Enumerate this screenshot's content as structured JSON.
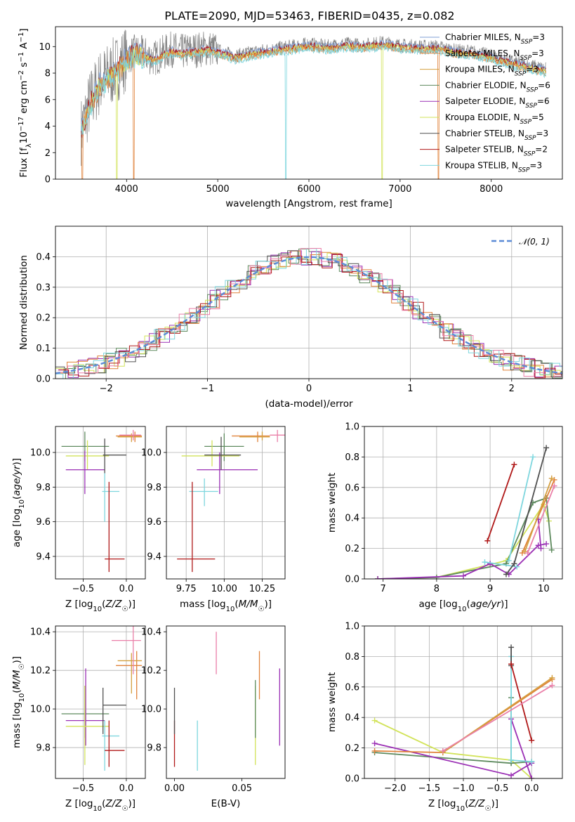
{
  "title": "PLATE=2090, MJD=53463, FIBERID=0435, z=0.082",
  "colors": {
    "Chabrier MILES": "#7f9fd6",
    "Salpeter MILES": "#e0823a",
    "Kroupa MILES": "#d4a040",
    "Chabrier ELODIE": "#5e8a5e",
    "Salpeter ELODIE": "#9b30b5",
    "Kroupa ELODIE": "#d2e35a",
    "Chabrier STELIB": "#505050",
    "Salpeter STELIB": "#b01818",
    "Kroupa STELIB": "#7ed6de",
    "extra_pink": "#ea7fa8",
    "normal_curve": "#5b8bd6",
    "grid": "#b0b0b0"
  },
  "chart_data": [
    {
      "id": "spectrum",
      "type": "line",
      "title": "PLATE=2090, MJD=53463, FIBERID=0435, z=0.082",
      "xlabel": "wavelength [Angstrom, rest frame]",
      "ylabel": "Flux [f_λ 10^-17 erg cm^-2 s^-1 A^-1]",
      "xlim": [
        3220,
        8780
      ],
      "ylim": [
        0,
        11.5
      ],
      "xticks": [
        4000,
        5000,
        6000,
        7000,
        8000
      ],
      "yticks": [
        0,
        2,
        4,
        6,
        8,
        10
      ],
      "grid": false,
      "legend_position": "top-right",
      "legend": [
        "Chabrier MILES, N_SSP=3",
        "Salpeter MILES, N_SSP=3",
        "Kroupa MILES, N_SSP=3",
        "Chabrier ELODIE, N_SSP=6",
        "Salpeter ELODIE, N_SSP=6",
        "Kroupa ELODIE, N_SSP=5",
        "Chabrier STELIB, N_SSP=3",
        "Salpeter STELIB, N_SSP=2",
        "Kroupa STELIB, N_SSP=3"
      ],
      "legend_labels": [
        {
          "name": "Chabrier MILES, N",
          "sub": "SSP",
          "tail": "=3"
        },
        {
          "name": "Salpeter MILES, N",
          "sub": "SSP",
          "tail": "=3"
        },
        {
          "name": "Kroupa MILES, N",
          "sub": "SSP",
          "tail": "=3"
        },
        {
          "name": "Chabrier ELODIE, N",
          "sub": "SSP",
          "tail": "=6"
        },
        {
          "name": "Salpeter ELODIE, N",
          "sub": "SSP",
          "tail": "=6"
        },
        {
          "name": "Kroupa ELODIE, N",
          "sub": "SSP",
          "tail": "=5"
        },
        {
          "name": "Chabrier STELIB, N",
          "sub": "SSP",
          "tail": "=3"
        },
        {
          "name": "Salpeter STELIB, N",
          "sub": "SSP",
          "tail": "=2"
        },
        {
          "name": "Kroupa STELIB, N",
          "sub": "SSP",
          "tail": "=3"
        }
      ],
      "data_envelope": {
        "x": [
          3500,
          3600,
          3700,
          3800,
          3900,
          4000,
          4100,
          4200,
          4300,
          4400,
          4500,
          4600,
          4700,
          4800,
          4900,
          5000,
          5100,
          5200,
          5400,
          5600,
          5800,
          6000,
          6200,
          6400,
          6600,
          6800,
          7000,
          7200,
          7400,
          7600,
          7800,
          8000,
          8200,
          8400,
          8600
        ],
        "y": [
          3.6,
          5.8,
          7.2,
          7.8,
          8.4,
          9.2,
          9.6,
          9.4,
          9.1,
          9.5,
          9.8,
          9.6,
          9.7,
          9.8,
          9.9,
          9.7,
          9.5,
          9.3,
          9.6,
          9.8,
          10.0,
          10.2,
          10.0,
          10.2,
          10.1,
          10.3,
          10.1,
          10.0,
          10.0,
          9.7,
          9.6,
          9.3,
          8.9,
          8.6,
          8.3
        ]
      },
      "dips": [
        {
          "series": "Salpeter MILES",
          "x": 3515
        },
        {
          "series": "Salpeter MILES",
          "x": 4080
        },
        {
          "series": "Kroupa ELODIE",
          "x": 3895
        },
        {
          "series": "Kroupa STELIB",
          "x": 5745
        },
        {
          "series": "Kroupa ELODIE",
          "x": 6805
        },
        {
          "series": "Salpeter MILES",
          "x": 7420
        }
      ]
    },
    {
      "id": "residual_histogram",
      "type": "bar",
      "xlabel": "(data-model)/error",
      "ylabel": "Normed distribution",
      "xlim": [
        -2.5,
        2.5
      ],
      "ylim": [
        0,
        0.5
      ],
      "xticks": [
        -2,
        -1,
        0,
        1,
        2
      ],
      "yticks": [
        0.0,
        0.1,
        0.2,
        0.3,
        0.4
      ],
      "grid": true,
      "legend_position": "top-right",
      "legend": [
        "N(0,1)"
      ],
      "bin_edges_from": -2.5,
      "bin_width": 0.1,
      "histograms": [
        {
          "series": "Chabrier ELODIE",
          "shift": 0.0
        },
        {
          "series": "Salpeter ELODIE",
          "shift": 0.025
        },
        {
          "series": "Kroupa ELODIE",
          "shift": -0.02
        },
        {
          "series": "Salpeter MILES",
          "shift": 0.015
        },
        {
          "series": "Chabrier STELIB",
          "shift": -0.01
        },
        {
          "series": "Salpeter STELIB",
          "shift": 0.03
        },
        {
          "series": "Kroupa STELIB",
          "shift": -0.025
        },
        {
          "series": "extra_pink",
          "shift": 0.02
        }
      ]
    },
    {
      "id": "age_vs_Z",
      "type": "scatter",
      "xlabel": "Z [log10(Z/Z☉)]",
      "ylabel": "age [log10(age/yr)]",
      "xlim": [
        -0.82,
        0.22
      ],
      "ylim": [
        9.27,
        10.15
      ],
      "xticks": [
        -0.5,
        0.0
      ],
      "yticks": [
        9.4,
        9.6,
        9.8,
        10.0
      ],
      "grid": true,
      "points": [
        {
          "series": "Chabrier ELODIE",
          "x": -0.48,
          "y": 10.035,
          "xlo": -0.75,
          "xhi": -0.2,
          "ylo": 9.95,
          "yhi": 10.12
        },
        {
          "series": "Kroupa ELODIE",
          "x": -0.45,
          "y": 9.98,
          "xlo": -0.7,
          "xhi": -0.2,
          "ylo": 9.9,
          "yhi": 10.07
        },
        {
          "series": "Salpeter ELODIE",
          "x": -0.48,
          "y": 9.9,
          "xlo": -0.7,
          "xhi": -0.25,
          "ylo": 9.76,
          "yhi": 10.01
        },
        {
          "series": "Chabrier STELIB",
          "x": -0.25,
          "y": 9.985,
          "xlo": -0.27,
          "xhi": 0.0,
          "ylo": 9.88,
          "yhi": 10.08
        },
        {
          "series": "Kroupa STELIB",
          "x": -0.25,
          "y": 9.775,
          "xlo": -0.28,
          "xhi": -0.08,
          "ylo": 9.6,
          "yhi": 9.88
        },
        {
          "series": "Salpeter STELIB",
          "x": -0.2,
          "y": 9.385,
          "xlo": -0.25,
          "xhi": -0.02,
          "ylo": 9.31,
          "yhi": 9.83
        },
        {
          "series": "Salpeter MILES",
          "x": 0.1,
          "y": 10.095,
          "xlo": -0.12,
          "xhi": 0.18,
          "ylo": 10.06,
          "yhi": 10.12
        },
        {
          "series": "Kroupa MILES",
          "x": 0.06,
          "y": 10.09,
          "xlo": -0.1,
          "xhi": 0.18,
          "ylo": 10.06,
          "yhi": 10.11
        },
        {
          "series": "extra_pink",
          "x": 0.08,
          "y": 10.1,
          "xlo": -0.08,
          "xhi": 0.17,
          "ylo": 10.07,
          "yhi": 10.13
        }
      ]
    },
    {
      "id": "age_vs_mass",
      "type": "scatter",
      "xlabel": "mass [log10(M/M☉)]",
      "ylabel": "",
      "xlim": [
        9.62,
        10.4
      ],
      "ylim": [
        9.27,
        10.15
      ],
      "xticks": [
        9.75,
        10.0,
        10.25
      ],
      "yticks": [
        9.4,
        9.6,
        9.8,
        10.0
      ],
      "grid": true,
      "points": [
        {
          "series": "Chabrier ELODIE",
          "x": 10.0,
          "y": 10.035,
          "xlo": 9.87,
          "xhi": 10.13,
          "ylo": 9.95,
          "yhi": 10.11
        },
        {
          "series": "Kroupa ELODIE",
          "x": 9.92,
          "y": 9.98,
          "xlo": 9.72,
          "xhi": 10.1,
          "ylo": 9.92,
          "yhi": 10.07
        },
        {
          "series": "Salpeter ELODIE",
          "x": 9.97,
          "y": 9.9,
          "xlo": 9.82,
          "xhi": 10.22,
          "ylo": 9.76,
          "yhi": 10.0
        },
        {
          "series": "Chabrier STELIB",
          "x": 9.98,
          "y": 9.985,
          "xlo": 9.87,
          "xhi": 10.11,
          "ylo": 9.9,
          "yhi": 10.09
        },
        {
          "series": "Kroupa STELIB",
          "x": 9.87,
          "y": 9.775,
          "xlo": 9.77,
          "xhi": 9.96,
          "ylo": 9.69,
          "yhi": 9.85
        },
        {
          "series": "Salpeter STELIB",
          "x": 9.79,
          "y": 9.385,
          "xlo": 9.69,
          "xhi": 9.94,
          "ylo": 9.31,
          "yhi": 9.83
        },
        {
          "series": "Salpeter MILES",
          "x": 10.22,
          "y": 10.095,
          "xlo": 10.05,
          "xhi": 10.3,
          "ylo": 10.06,
          "yhi": 10.12
        },
        {
          "series": "Kroupa MILES",
          "x": 10.25,
          "y": 10.09,
          "xlo": 10.1,
          "xhi": 10.3,
          "ylo": 10.07,
          "yhi": 10.12
        },
        {
          "series": "extra_pink",
          "x": 10.35,
          "y": 10.1,
          "xlo": 10.3,
          "xhi": 10.4,
          "ylo": 10.06,
          "yhi": 10.13
        }
      ]
    },
    {
      "id": "weight_vs_age",
      "type": "line",
      "xlabel": "age [log10(age/yr)]",
      "ylabel": "mass weight",
      "xlim": [
        6.65,
        10.35
      ],
      "ylim": [
        0,
        1.0
      ],
      "xticks": [
        7,
        8,
        9,
        10
      ],
      "yticks": [
        0.0,
        0.2,
        0.4,
        0.6,
        0.8,
        1.0
      ],
      "grid": true,
      "series": [
        {
          "name": "Kroupa ELODIE",
          "x": [
            6.9,
            8.0,
            9.3,
            10.0,
            10.1
          ],
          "y": [
            0.0,
            0.01,
            0.12,
            0.49,
            0.38
          ]
        },
        {
          "name": "Chabrier ELODIE",
          "x": [
            6.9,
            8.0,
            9.3,
            9.8,
            10.05,
            10.15
          ],
          "y": [
            0.0,
            0.01,
            0.1,
            0.5,
            0.53,
            0.19
          ]
        },
        {
          "name": "Salpeter ELODIE",
          "x": [
            6.9,
            8.5,
            9.0,
            9.35,
            9.9,
            10.05
          ],
          "y": [
            0.0,
            0.02,
            0.1,
            0.03,
            0.22,
            0.23
          ]
        },
        {
          "name": "Salpeter ELODIE",
          "x": [
            9.9,
            9.95
          ],
          "y": [
            0.39,
            0.2
          ]
        },
        {
          "name": "Kroupa STELIB",
          "x": [
            9.35,
            9.8
          ],
          "y": [
            0.12,
            0.8
          ]
        },
        {
          "name": "Kroupa STELIB",
          "x": [
            8.9,
            9.5
          ],
          "y": [
            0.11,
            0.08
          ]
        },
        {
          "name": "Chabrier STELIB",
          "x": [
            9.3,
            9.45,
            10.05
          ],
          "y": [
            0.03,
            0.1,
            0.86
          ]
        },
        {
          "name": "Salpeter STELIB",
          "x": [
            8.95,
            9.45
          ],
          "y": [
            0.25,
            0.75
          ]
        },
        {
          "name": "Salpeter MILES",
          "x": [
            9.6,
            10.2
          ],
          "y": [
            0.17,
            0.65
          ]
        },
        {
          "name": "Kroupa MILES",
          "x": [
            9.65,
            10.15
          ],
          "y": [
            0.18,
            0.66
          ]
        },
        {
          "name": "extra_pink",
          "x": [
            9.7,
            10.2
          ],
          "y": [
            0.17,
            0.61
          ]
        }
      ]
    },
    {
      "id": "mass_vs_Z",
      "type": "scatter",
      "xlabel": "Z [log10(Z/Z☉)]",
      "ylabel": "mass [log10(M/M☉)]",
      "xlim": [
        -0.82,
        0.22
      ],
      "ylim": [
        9.64,
        10.43
      ],
      "xticks": [
        -0.5,
        0.0
      ],
      "yticks": [
        9.8,
        10.0,
        10.2,
        10.4
      ],
      "grid": true,
      "points": [
        {
          "series": "Chabrier ELODIE",
          "x": -0.48,
          "y": 9.975,
          "xlo": -0.75,
          "xhi": -0.2,
          "ylo": 9.85,
          "yhi": 10.12
        },
        {
          "series": "Salpeter ELODIE",
          "x": -0.47,
          "y": 9.94,
          "xlo": -0.7,
          "xhi": -0.25,
          "ylo": 9.81,
          "yhi": 10.21
        },
        {
          "series": "Kroupa ELODIE",
          "x": -0.48,
          "y": 9.91,
          "xlo": -0.7,
          "xhi": -0.2,
          "ylo": 9.71,
          "yhi": 10.12
        },
        {
          "series": "Chabrier STELIB",
          "x": -0.27,
          "y": 10.02,
          "xlo": -0.27,
          "xhi": 0.0,
          "ylo": 9.87,
          "yhi": 10.11
        },
        {
          "series": "Kroupa STELIB",
          "x": -0.25,
          "y": 9.86,
          "xlo": -0.28,
          "xhi": -0.08,
          "ylo": 9.68,
          "yhi": 9.94
        },
        {
          "series": "Salpeter STELIB",
          "x": -0.2,
          "y": 9.785,
          "xlo": -0.25,
          "xhi": -0.02,
          "ylo": 9.7,
          "yhi": 9.94
        },
        {
          "series": "Salpeter MILES",
          "x": 0.12,
          "y": 10.225,
          "xlo": -0.12,
          "xhi": 0.18,
          "ylo": 10.05,
          "yhi": 10.3
        },
        {
          "series": "Kroupa MILES",
          "x": 0.06,
          "y": 10.25,
          "xlo": -0.1,
          "xhi": 0.18,
          "ylo": 10.08,
          "yhi": 10.29
        },
        {
          "series": "extra_pink",
          "x": 0.08,
          "y": 10.355,
          "xlo": -0.17,
          "xhi": 0.17,
          "ylo": 10.18,
          "yhi": 10.43
        }
      ]
    },
    {
      "id": "mass_vs_EBV",
      "type": "scatter",
      "xlabel": "E(B-V)",
      "ylabel": "",
      "xlim": [
        -0.006,
        0.082
      ],
      "ylim": [
        9.64,
        10.43
      ],
      "xticks": [
        0.0,
        0.05
      ],
      "yticks": [
        9.8,
        10.0,
        10.2,
        10.4
      ],
      "grid": false,
      "points": [
        {
          "series": "Salpeter STELIB",
          "x": 0.0,
          "y": 9.785,
          "ylo": 9.7,
          "yhi": 9.94
        },
        {
          "series": "Chabrier STELIB",
          "x": 0.0,
          "y": 10.02,
          "ylo": 9.87,
          "yhi": 10.11
        },
        {
          "series": "Kroupa STELIB",
          "x": 0.017,
          "y": 9.86,
          "ylo": 9.68,
          "yhi": 9.94
        },
        {
          "series": "extra_pink",
          "x": 0.031,
          "y": 10.355,
          "ylo": 10.18,
          "yhi": 10.4
        },
        {
          "series": "Kroupa ELODIE",
          "x": 0.06,
          "y": 9.91,
          "ylo": 9.71,
          "yhi": 10.12
        },
        {
          "series": "Chabrier ELODIE",
          "x": 0.06,
          "y": 9.975,
          "ylo": 9.85,
          "yhi": 10.15
        },
        {
          "series": "Salpeter MILES",
          "x": 0.063,
          "y": 10.225,
          "ylo": 10.05,
          "yhi": 10.3
        },
        {
          "series": "Salpeter ELODIE",
          "x": 0.078,
          "y": 9.94,
          "ylo": 9.81,
          "yhi": 10.21
        }
      ]
    },
    {
      "id": "weight_vs_Z",
      "type": "line",
      "xlabel": "Z [log10(Z/Z☉)]",
      "ylabel": "mass weight",
      "xlim": [
        -2.45,
        0.45
      ],
      "ylim": [
        0,
        1.0
      ],
      "xticks": [
        -2.0,
        -1.5,
        -1.0,
        -0.5,
        0.0
      ],
      "yticks": [
        0.0,
        0.2,
        0.4,
        0.6,
        0.8,
        1.0
      ],
      "grid": true,
      "series": [
        {
          "name": "Kroupa ELODIE",
          "x": [
            -2.3,
            -1.3,
            -0.3,
            0.0
          ],
          "y": [
            0.38,
            0.17,
            0.12,
            0.0
          ]
        },
        {
          "name": "Chabrier ELODIE",
          "x": [
            -2.3,
            -0.3,
            0.0
          ],
          "y": [
            0.17,
            0.1,
            0.11
          ]
        },
        {
          "name": "Chabrier ELODIE",
          "x": [
            -0.3,
            -0.3
          ],
          "y": [
            0.1,
            0.53
          ]
        },
        {
          "name": "Salpeter ELODIE",
          "x": [
            -2.3,
            -0.3,
            0.0
          ],
          "y": [
            0.23,
            0.02,
            0.1
          ]
        },
        {
          "name": "Salpeter ELODIE",
          "x": [
            -0.3,
            0.0
          ],
          "y": [
            0.39,
            0.0
          ]
        },
        {
          "name": "Kroupa STELIB",
          "x": [
            -0.3,
            -0.3,
            0.0
          ],
          "y": [
            0.8,
            0.12,
            0.11
          ]
        },
        {
          "name": "Chabrier STELIB",
          "x": [
            -0.3,
            -0.3
          ],
          "y": [
            0.86,
            0.74
          ]
        },
        {
          "name": "Salpeter STELIB",
          "x": [
            -0.3,
            0.0
          ],
          "y": [
            0.75,
            0.25
          ]
        },
        {
          "name": "Salpeter MILES",
          "x": [
            -2.3,
            -1.3,
            0.3
          ],
          "y": [
            0.18,
            0.17,
            0.65
          ]
        },
        {
          "name": "Kroupa MILES",
          "x": [
            -1.3,
            0.3
          ],
          "y": [
            0.17,
            0.66
          ]
        },
        {
          "name": "extra_pink",
          "x": [
            -1.3,
            0.3
          ],
          "y": [
            0.18,
            0.61
          ]
        }
      ]
    }
  ]
}
